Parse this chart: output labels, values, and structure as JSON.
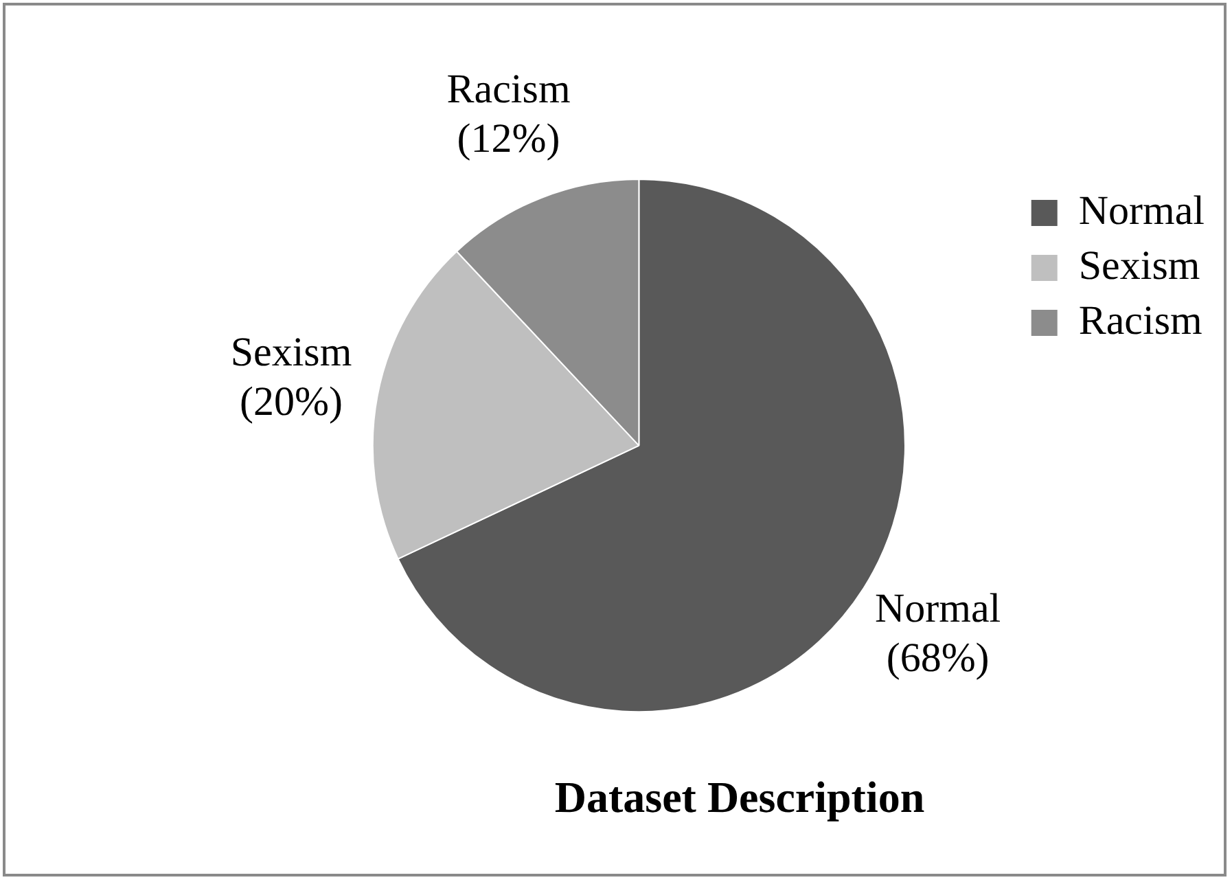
{
  "chart_data": {
    "type": "pie",
    "title": "Dataset Description",
    "categories": [
      "Normal",
      "Sexism",
      "Racism"
    ],
    "values": [
      68,
      20,
      12
    ],
    "colors": [
      "#595959",
      "#bfbfbf",
      "#8c8c8c"
    ],
    "value_labels": [
      "(68%)",
      "(20%)",
      "(12%)"
    ],
    "legend": "top right"
  }
}
